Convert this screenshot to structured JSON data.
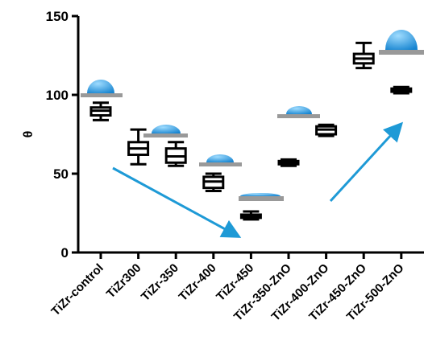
{
  "chart_data": {
    "type": "box",
    "y_label": "θ",
    "categories": [
      "TiZr-control",
      "TiZr300",
      "TiZr-350",
      "TiZr-400",
      "TiZr-450",
      "TiZr-350-ZnO",
      "TiZr-400-ZnO",
      "TiZr-450-ZnO",
      "TiZr-500-ZnO"
    ],
    "boxes": [
      {
        "min": 84,
        "q1": 87,
        "median": 90,
        "q3": 92,
        "max": 95
      },
      {
        "min": 56,
        "q1": 62,
        "median": 66,
        "q3": 70,
        "max": 78
      },
      {
        "min": 55,
        "q1": 57,
        "median": 61,
        "q3": 66,
        "max": 70
      },
      {
        "min": 39,
        "q1": 41,
        "median": 45,
        "q3": 48,
        "max": 50
      },
      {
        "min": 21,
        "q1": 22,
        "median": 23,
        "q3": 24,
        "max": 26
      },
      {
        "min": 55,
        "q1": 56,
        "median": 57,
        "q3": 58,
        "max": 59
      },
      {
        "min": 74,
        "q1": 75,
        "median": 78,
        "q3": 80,
        "max": 81
      },
      {
        "min": 117,
        "q1": 120,
        "median": 123,
        "q3": 126,
        "max": 133
      },
      {
        "min": 101,
        "q1": 102,
        "median": 103,
        "q3": 104,
        "max": 105
      }
    ],
    "color": "#000000",
    "ylim": [
      0,
      150
    ],
    "yticks": [
      0,
      50,
      100,
      150
    ]
  }
}
